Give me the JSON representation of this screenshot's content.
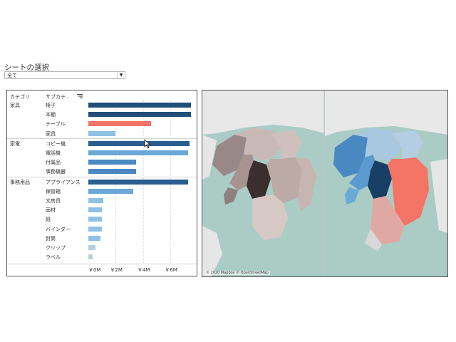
{
  "header": {
    "title": "シートの選択"
  },
  "selector": {
    "value": "全て"
  },
  "chart_data": {
    "type": "bar",
    "orientation": "horizontal",
    "column_headers": [
      "カテゴリ",
      "サブカテ.."
    ],
    "x_ticks": [
      "￥0M",
      "￥2M",
      "￥4M",
      "￥6M"
    ],
    "xlim": [
      0,
      7.6
    ],
    "groups": [
      {
        "category": "家具",
        "items": [
          {
            "name": "椅子",
            "value": 7.5,
            "color": "#1f4e79"
          },
          {
            "name": "本棚",
            "value": 7.5,
            "color": "#1f4e79"
          },
          {
            "name": "テーブル",
            "value": 4.6,
            "color": "#f47466"
          },
          {
            "name": "家具",
            "value": 2.0,
            "color": "#8fc0e6"
          }
        ]
      },
      {
        "category": "家電",
        "items": [
          {
            "name": "コピー機",
            "value": 7.4,
            "color": "#2a5e90"
          },
          {
            "name": "電話機",
            "value": 7.3,
            "color": "#6aa8d8"
          },
          {
            "name": "付属品",
            "value": 3.5,
            "color": "#4a88c2"
          },
          {
            "name": "事務機器",
            "value": 3.5,
            "color": "#4a88c2"
          }
        ]
      },
      {
        "category": "事務用品",
        "items": [
          {
            "name": "アプライアンス",
            "value": 7.3,
            "color": "#2a5e90"
          },
          {
            "name": "保管箱",
            "value": 3.3,
            "color": "#6aa8d8"
          },
          {
            "name": "文房具",
            "value": 1.1,
            "color": "#8fc0e6"
          },
          {
            "name": "画材",
            "value": 1.0,
            "color": "#8fc0e6"
          },
          {
            "name": "紙",
            "value": 1.0,
            "color": "#8fc0e6"
          },
          {
            "name": "バインダー",
            "value": 1.0,
            "color": "#8fc0e6"
          },
          {
            "name": "封筒",
            "value": 0.9,
            "color": "#8fc0e6"
          },
          {
            "name": "クリップ",
            "value": 0.5,
            "color": "#b8cfe0"
          },
          {
            "name": "ラベル",
            "value": 0.3,
            "color": "#b8cfe0"
          }
        ]
      }
    ]
  },
  "map": {
    "attribution": "© 2020 Mapbox © OpenStreetMap"
  }
}
